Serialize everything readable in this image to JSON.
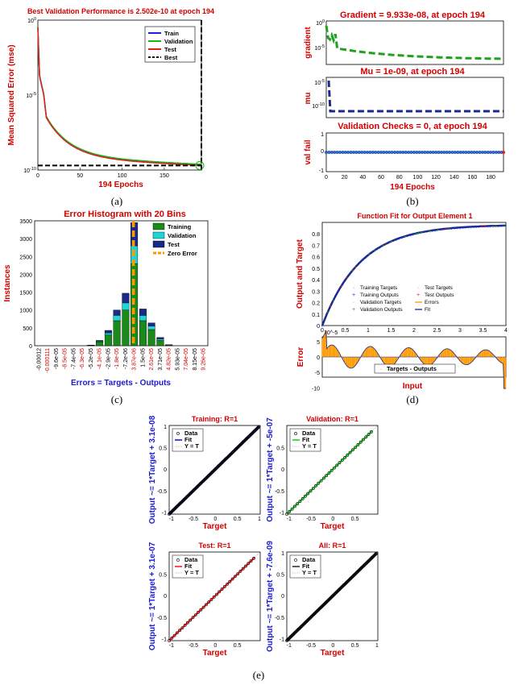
{
  "captions": [
    "(a)",
    "(b)",
    "(c)",
    "(d)",
    "(e)"
  ],
  "colors": {
    "red": "#d40000",
    "blue": "#1a1ad4",
    "green": "#1fa01f",
    "cyan": "#1fd4d4",
    "orange": "#ff9900",
    "navy": "#1a2a8a"
  },
  "chart_data": [
    {
      "id": "a",
      "type": "line",
      "title": "Best Validation Performance is 2.502e-10 at epoch 194",
      "xlabel": "194 Epochs",
      "ylabel": "Mean Squared Error  (mse)",
      "xlim": [
        0,
        194
      ],
      "ylim_log10": [
        -10,
        0
      ],
      "xticks": [
        "0",
        "50",
        "100",
        "150"
      ],
      "yticks": [
        "10^0",
        "10^-5",
        "10^-10"
      ],
      "legend": [
        "Train",
        "Validation",
        "Test",
        "Best"
      ],
      "best_epoch": 194,
      "best_value": "2.502e-10"
    },
    {
      "id": "b1",
      "type": "line",
      "title": "Gradient = 9.933e-08, at epoch 194",
      "ylabel": "gradient",
      "yticks": [
        "10^0",
        "10^-5"
      ]
    },
    {
      "id": "b2",
      "type": "line",
      "title": "Mu = 1e-09, at epoch 194",
      "ylabel": "mu",
      "yticks": [
        "10^-5",
        "10^-10"
      ]
    },
    {
      "id": "b3",
      "type": "scatter",
      "title": "Validation Checks = 0, at epoch 194",
      "ylabel": "val fail",
      "xlabel": "194 Epochs",
      "xticks": [
        "0",
        "20",
        "40",
        "60",
        "80",
        "100",
        "120",
        "140",
        "160",
        "180"
      ],
      "yticks": [
        "1",
        "0",
        "-1"
      ]
    },
    {
      "id": "c",
      "type": "bar",
      "title": "Error Histogram with 20 Bins",
      "xlabel": "Errors = Targets - Outputs",
      "ylabel": "Instances",
      "ylim": [
        0,
        3500
      ],
      "yticks": [
        "0",
        "500",
        "1000",
        "1500",
        "2000",
        "2500",
        "3000",
        "3500"
      ],
      "categories": [
        "-0.00012",
        "-0.000111",
        "-9.6e-05",
        "-8.5e-05",
        "-7.4e-05",
        "-6.3e-05",
        "-5.2e-05",
        "-4.1e-05",
        "-2.9e-05",
        "-1.8e-05",
        "-7.2e-06",
        "3.87e-06",
        "1.5e-05",
        "2.61e-05",
        "3.71e-05",
        "4.82e-05",
        "5.93e-05",
        "7.04e-05",
        "8.15e-05",
        "9.26e-05"
      ],
      "series": [
        {
          "name": "Training",
          "values": [
            0,
            0,
            0,
            0,
            0,
            0,
            10,
            110,
            300,
            700,
            1000,
            2300,
            700,
            450,
            150,
            20,
            0,
            0,
            0,
            0
          ]
        },
        {
          "name": "Validation",
          "values": [
            0,
            0,
            0,
            0,
            0,
            0,
            2,
            20,
            60,
            150,
            200,
            500,
            150,
            100,
            40,
            5,
            0,
            0,
            0,
            0
          ]
        },
        {
          "name": "Test",
          "values": [
            0,
            0,
            0,
            0,
            0,
            0,
            3,
            20,
            70,
            150,
            270,
            650,
            180,
            90,
            40,
            5,
            0,
            0,
            0,
            0
          ]
        }
      ],
      "legend": [
        "Training",
        "Validation",
        "Test",
        "Zero Error"
      ]
    },
    {
      "id": "d",
      "type": "line",
      "title": "Function Fit for Output Element 1",
      "ylabel": "Output and Target",
      "xlabel": "Input",
      "xlim": [
        0,
        4
      ],
      "ylim": [
        0,
        0.9
      ],
      "xticks": [
        "0",
        "0.5",
        "1",
        "1.5",
        "2",
        "2.5",
        "3",
        "3.5",
        "4"
      ],
      "yticks": [
        "0",
        "0.1",
        "0.2",
        "0.3",
        "0.4",
        "0.5",
        "0.6",
        "0.7",
        "0.8"
      ],
      "legend": [
        "Training Targets",
        "Training Outputs",
        "Validation Targets",
        "Validation Outputs",
        "Test Targets",
        "Test Outputs",
        "Errors",
        "Fit"
      ],
      "error_panel": {
        "ylabel": "Error",
        "scale": "10^-5",
        "yticks": [
          "5",
          "0",
          "-5",
          "-10"
        ],
        "legend": "Targets - Outputs"
      }
    },
    {
      "id": "e",
      "type": "scatter",
      "panels": [
        {
          "title": "Training: R=1",
          "ylabel": "Output ~= 1*Target + 3.1e-08",
          "fit_color": "#1a1ad4",
          "xticks": [
            "-1",
            "-0.5",
            "0",
            "0.5",
            "1"
          ],
          "yticks": [
            "1",
            "0.5",
            "0",
            "-0.5",
            "-1"
          ],
          "range": [
            -1.05,
            1.0
          ]
        },
        {
          "title": "Validation: R=1",
          "ylabel": "Output ~= 1*Target + -5e-07",
          "fit_color": "#1fd41f",
          "xticks": [
            "-1",
            "-0.5",
            "0",
            "0.5"
          ],
          "yticks": [
            "0.5",
            "0",
            "-0.5",
            "-1"
          ],
          "range": [
            -1.05,
            0.9
          ]
        },
        {
          "title": "Test: R=1",
          "ylabel": "Output ~= 1*Target + 3.1e-07",
          "fit_color": "#ff2020",
          "xticks": [
            "-1",
            "-0.5",
            "0",
            "0.5"
          ],
          "yticks": [
            "0.5",
            "0",
            "-0.5",
            "-1"
          ],
          "range": [
            -1.05,
            0.9
          ]
        },
        {
          "title": "All: R=1",
          "ylabel": "Output ~= 1*Target + -7.6e-09",
          "fit_color": "#333333",
          "xticks": [
            "-1",
            "-0.5",
            "0",
            "0.5",
            "1"
          ],
          "yticks": [
            "1",
            "0.5",
            "0",
            "-0.5",
            "-1"
          ],
          "range": [
            -1.05,
            1.0
          ]
        }
      ],
      "xlabel": "Target",
      "legend": [
        "Data",
        "Fit",
        "Y = T"
      ]
    }
  ]
}
